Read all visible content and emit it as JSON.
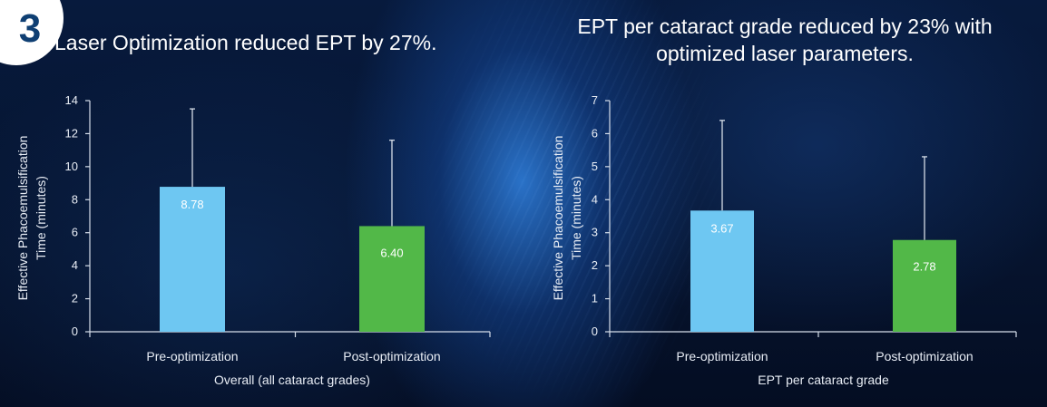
{
  "badge": {
    "number": "3"
  },
  "colors": {
    "pre": "#6ec7f2",
    "post": "#52b848",
    "axis": "#d6deea"
  },
  "chart_data": [
    {
      "type": "bar",
      "title": "Laser Optimization reduced EPT by 27%.",
      "categories": [
        "Pre-optimization",
        "Post-optimization"
      ],
      "values": [
        8.78,
        6.4
      ],
      "value_labels": [
        "8.78",
        "6.40"
      ],
      "error_upper": [
        13.5,
        11.6
      ],
      "xlabel": "Overall (all cataract grades)",
      "ylabel": [
        "Effective Phacoemulsification",
        "Time  (minutes)"
      ],
      "ylim": [
        0,
        14
      ],
      "yticks": [
        0,
        2,
        4,
        6,
        8,
        10,
        12,
        14
      ]
    },
    {
      "type": "bar",
      "title": "EPT per cataract grade reduced by 23% with optimized laser parameters.",
      "title_lines": [
        "EPT per cataract grade reduced by 23% with",
        "optimized laser parameters."
      ],
      "categories": [
        "Pre-optimization",
        "Post-optimization"
      ],
      "values": [
        3.67,
        2.78
      ],
      "value_labels": [
        "3.67",
        "2.78"
      ],
      "error_upper": [
        6.4,
        5.3
      ],
      "xlabel": "EPT per cataract grade",
      "ylabel": [
        "Effective Phacoemulsification",
        "Time  (minutes)"
      ],
      "ylim": [
        0,
        7
      ],
      "yticks": [
        0,
        1,
        2,
        3,
        4,
        5,
        6,
        7
      ]
    }
  ]
}
